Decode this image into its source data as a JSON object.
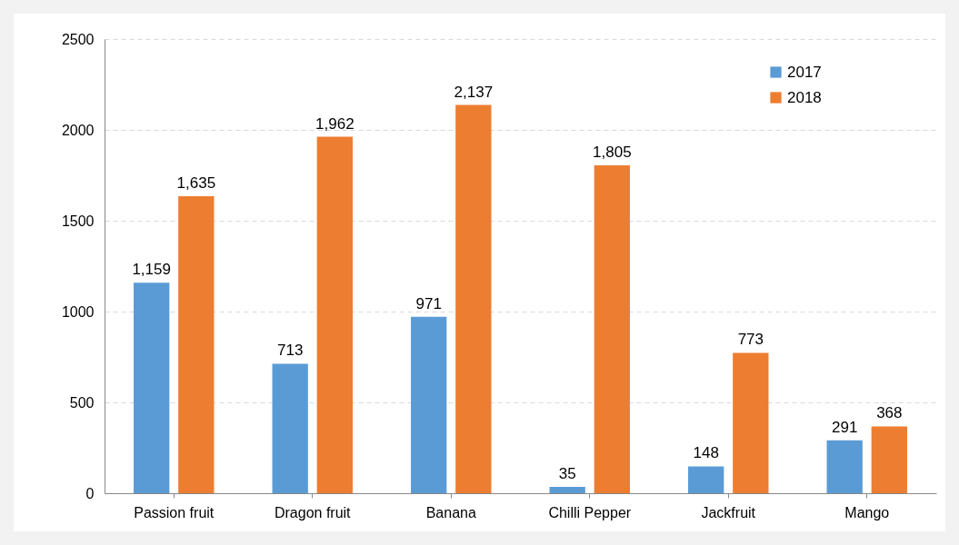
{
  "chart_data": {
    "type": "bar",
    "categories": [
      "Passion fruit",
      "Dragon fruit",
      "Banana",
      "Chilli Pepper",
      "Jackfruit",
      "Mango"
    ],
    "series": [
      {
        "name": "2017",
        "color": "#5b9bd5",
        "values": [
          1159,
          713,
          971,
          35,
          148,
          291
        ],
        "value_labels": [
          "1,159",
          "713",
          "971",
          "35",
          "148",
          "291"
        ]
      },
      {
        "name": "2018",
        "color": "#ed7d31",
        "values": [
          1635,
          1962,
          2137,
          1805,
          773,
          368
        ],
        "value_labels": [
          "1,635",
          "1,962",
          "2,137",
          "1,805",
          "773",
          "368"
        ]
      }
    ],
    "ylim": [
      0,
      2500
    ],
    "yticks": [
      0,
      500,
      1000,
      1500,
      2000,
      2500
    ],
    "grid": "y",
    "legend": "top right"
  }
}
